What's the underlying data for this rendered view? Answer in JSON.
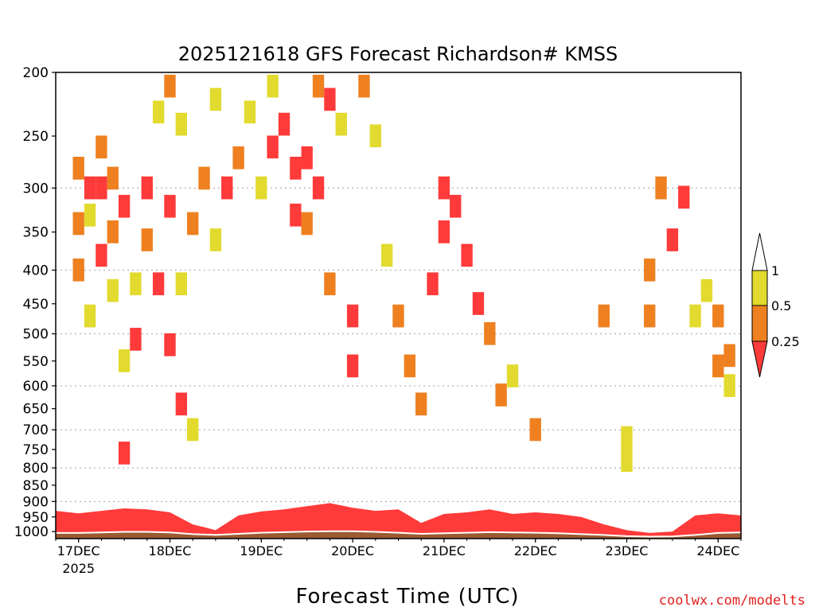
{
  "chart_data": {
    "type": "heatmap",
    "title": "2025121618 GFS Forecast Richardson# KMSS",
    "xlabel": "Forecast Time (UTC)",
    "ylabel": "",
    "x_ticks": [
      "17DEC",
      "18DEC",
      "19DEC",
      "20DEC",
      "21DEC",
      "22DEC",
      "23DEC",
      "24DEC"
    ],
    "x_tick_sublabel": "2025",
    "y_ticks": [
      200,
      250,
      300,
      350,
      400,
      450,
      500,
      550,
      600,
      650,
      700,
      750,
      800,
      850,
      900,
      950,
      1000
    ],
    "y_gridlines": [
      300,
      400,
      500,
      600,
      700,
      800,
      900
    ],
    "y_scale": "log",
    "y_range": [
      200,
      1025
    ],
    "x_range": [
      "2025-12-16 18Z",
      "2025-12-24 06Z"
    ],
    "colorbar": {
      "levels": [
        0.25,
        0.5,
        1
      ],
      "level_labels": [
        "0.25",
        "0.5",
        "1"
      ],
      "colors": [
        "#ff3a3a",
        "#ee8020",
        "#e2da2e",
        "#ffffff"
      ]
    },
    "surface_pressure": [
      [
        "2025-12-16 18Z",
        1005
      ],
      [
        "2025-12-17 00Z",
        1005
      ],
      [
        "2025-12-17 06Z",
        1003
      ],
      [
        "2025-12-17 12Z",
        1001
      ],
      [
        "2025-12-17 18Z",
        1001
      ],
      [
        "2025-12-18 00Z",
        1003
      ],
      [
        "2025-12-18 06Z",
        1009
      ],
      [
        "2025-12-18 12Z",
        1012
      ],
      [
        "2025-12-18 18Z",
        1008
      ],
      [
        "2025-12-19 00Z",
        1004
      ],
      [
        "2025-12-19 06Z",
        1002
      ],
      [
        "2025-12-19 12Z",
        1000
      ],
      [
        "2025-12-19 18Z",
        999
      ],
      [
        "2025-12-20 00Z",
        999
      ],
      [
        "2025-12-20 06Z",
        1001
      ],
      [
        "2025-12-20 12Z",
        1004
      ],
      [
        "2025-12-20 18Z",
        1008
      ],
      [
        "2025-12-21 00Z",
        1006
      ],
      [
        "2025-12-21 06Z",
        1004
      ],
      [
        "2025-12-21 12Z",
        1002
      ],
      [
        "2025-12-21 18Z",
        1003
      ],
      [
        "2025-12-22 00Z",
        1004
      ],
      [
        "2025-12-22 06Z",
        1006
      ],
      [
        "2025-12-22 12Z",
        1009
      ],
      [
        "2025-12-22 18Z",
        1012
      ],
      [
        "2025-12-23 00Z",
        1016
      ],
      [
        "2025-12-23 06Z",
        1018
      ],
      [
        "2025-12-23 12Z",
        1017
      ],
      [
        "2025-12-23 18Z",
        1012
      ],
      [
        "2025-12-24 00Z",
        1005
      ],
      [
        "2025-12-24 06Z",
        1003
      ]
    ],
    "boundary_layer_top_red": [
      [
        "2025-12-16 18Z",
        930
      ],
      [
        "2025-12-17 00Z",
        938
      ],
      [
        "2025-12-17 06Z",
        930
      ],
      [
        "2025-12-17 12Z",
        922
      ],
      [
        "2025-12-17 18Z",
        925
      ],
      [
        "2025-12-18 00Z",
        935
      ],
      [
        "2025-12-18 06Z",
        975
      ],
      [
        "2025-12-18 12Z",
        995
      ],
      [
        "2025-12-18 18Z",
        945
      ],
      [
        "2025-12-19 00Z",
        932
      ],
      [
        "2025-12-19 06Z",
        925
      ],
      [
        "2025-12-19 12Z",
        915
      ],
      [
        "2025-12-19 18Z",
        905
      ],
      [
        "2025-12-20 00Z",
        920
      ],
      [
        "2025-12-20 06Z",
        930
      ],
      [
        "2025-12-20 12Z",
        925
      ],
      [
        "2025-12-20 18Z",
        970
      ],
      [
        "2025-12-21 00Z",
        940
      ],
      [
        "2025-12-21 06Z",
        935
      ],
      [
        "2025-12-21 12Z",
        925
      ],
      [
        "2025-12-21 18Z",
        940
      ],
      [
        "2025-12-22 00Z",
        935
      ],
      [
        "2025-12-22 06Z",
        940
      ],
      [
        "2025-12-22 12Z",
        950
      ],
      [
        "2025-12-22 18Z",
        975
      ],
      [
        "2025-12-23 00Z",
        995
      ],
      [
        "2025-12-23 06Z",
        1005
      ],
      [
        "2025-12-23 12Z",
        1000
      ],
      [
        "2025-12-23 18Z",
        945
      ],
      [
        "2025-12-24 00Z",
        938
      ],
      [
        "2025-12-24 06Z",
        945
      ]
    ],
    "cells": [
      [
        "2025-12-17 00Z",
        280,
        "orange"
      ],
      [
        "2025-12-17 00Z",
        340,
        "orange"
      ],
      [
        "2025-12-17 00Z",
        400,
        "orange"
      ],
      [
        "2025-12-17 03Z",
        300,
        "red"
      ],
      [
        "2025-12-17 03Z",
        330,
        "yellow"
      ],
      [
        "2025-12-17 03Z",
        470,
        "yellow"
      ],
      [
        "2025-12-17 06Z",
        260,
        "orange"
      ],
      [
        "2025-12-17 06Z",
        300,
        "red"
      ],
      [
        "2025-12-17 06Z",
        380,
        "red"
      ],
      [
        "2025-12-17 09Z",
        290,
        "orange"
      ],
      [
        "2025-12-17 09Z",
        350,
        "orange"
      ],
      [
        "2025-12-17 09Z",
        430,
        "yellow"
      ],
      [
        "2025-12-17 12Z",
        320,
        "red"
      ],
      [
        "2025-12-17 12Z",
        550,
        "yellow"
      ],
      [
        "2025-12-17 12Z",
        760,
        "red"
      ],
      [
        "2025-12-17 15Z",
        420,
        "yellow"
      ],
      [
        "2025-12-17 15Z",
        510,
        "red"
      ],
      [
        "2025-12-17 18Z",
        300,
        "red"
      ],
      [
        "2025-12-17 18Z",
        360,
        "orange"
      ],
      [
        "2025-12-17 21Z",
        230,
        "yellow"
      ],
      [
        "2025-12-17 21Z",
        420,
        "red"
      ],
      [
        "2025-12-18 00Z",
        210,
        "orange"
      ],
      [
        "2025-12-18 00Z",
        320,
        "red"
      ],
      [
        "2025-12-18 00Z",
        520,
        "red"
      ],
      [
        "2025-12-18 03Z",
        240,
        "yellow"
      ],
      [
        "2025-12-18 03Z",
        420,
        "yellow"
      ],
      [
        "2025-12-18 03Z",
        640,
        "red"
      ],
      [
        "2025-12-18 06Z",
        340,
        "orange"
      ],
      [
        "2025-12-18 06Z",
        700,
        "yellow"
      ],
      [
        "2025-12-18 09Z",
        290,
        "orange"
      ],
      [
        "2025-12-18 12Z",
        220,
        "yellow"
      ],
      [
        "2025-12-18 12Z",
        360,
        "yellow"
      ],
      [
        "2025-12-18 15Z",
        300,
        "red"
      ],
      [
        "2025-12-18 18Z",
        270,
        "orange"
      ],
      [
        "2025-12-18 21Z",
        230,
        "yellow"
      ],
      [
        "2025-12-19 00Z",
        300,
        "yellow"
      ],
      [
        "2025-12-19 03Z",
        210,
        "yellow"
      ],
      [
        "2025-12-19 03Z",
        260,
        "red"
      ],
      [
        "2025-12-19 06Z",
        240,
        "red"
      ],
      [
        "2025-12-19 09Z",
        280,
        "red"
      ],
      [
        "2025-12-19 09Z",
        330,
        "red"
      ],
      [
        "2025-12-19 12Z",
        270,
        "red"
      ],
      [
        "2025-12-19 12Z",
        340,
        "orange"
      ],
      [
        "2025-12-19 15Z",
        210,
        "orange"
      ],
      [
        "2025-12-19 15Z",
        300,
        "red"
      ],
      [
        "2025-12-19 18Z",
        220,
        "red"
      ],
      [
        "2025-12-19 18Z",
        420,
        "orange"
      ],
      [
        "2025-12-19 21Z",
        240,
        "yellow"
      ],
      [
        "2025-12-20 00Z",
        470,
        "red"
      ],
      [
        "2025-12-20 00Z",
        560,
        "red"
      ],
      [
        "2025-12-20 03Z",
        210,
        "orange"
      ],
      [
        "2025-12-20 06Z",
        250,
        "yellow"
      ],
      [
        "2025-12-20 09Z",
        380,
        "yellow"
      ],
      [
        "2025-12-20 12Z",
        470,
        "orange"
      ],
      [
        "2025-12-20 15Z",
        560,
        "orange"
      ],
      [
        "2025-12-20 18Z",
        640,
        "orange"
      ],
      [
        "2025-12-20 21Z",
        420,
        "red"
      ],
      [
        "2025-12-21 00Z",
        300,
        "red"
      ],
      [
        "2025-12-21 00Z",
        350,
        "red"
      ],
      [
        "2025-12-21 03Z",
        320,
        "red"
      ],
      [
        "2025-12-21 06Z",
        380,
        "red"
      ],
      [
        "2025-12-21 09Z",
        450,
        "red"
      ],
      [
        "2025-12-21 12Z",
        500,
        "orange"
      ],
      [
        "2025-12-21 15Z",
        620,
        "orange"
      ],
      [
        "2025-12-21 18Z",
        580,
        "yellow"
      ],
      [
        "2025-12-22 00Z",
        700,
        "orange"
      ],
      [
        "2025-12-22 18Z",
        470,
        "orange"
      ],
      [
        "2025-12-23 00Z",
        720,
        "yellow"
      ],
      [
        "2025-12-23 00Z",
        780,
        "yellow"
      ],
      [
        "2025-12-23 06Z",
        400,
        "orange"
      ],
      [
        "2025-12-23 06Z",
        470,
        "orange"
      ],
      [
        "2025-12-23 09Z",
        300,
        "orange"
      ],
      [
        "2025-12-23 12Z",
        360,
        "red"
      ],
      [
        "2025-12-23 15Z",
        310,
        "red"
      ],
      [
        "2025-12-23 18Z",
        470,
        "yellow"
      ],
      [
        "2025-12-23 21Z",
        430,
        "yellow"
      ],
      [
        "2025-12-24 00Z",
        470,
        "orange"
      ],
      [
        "2025-12-24 00Z",
        560,
        "orange"
      ],
      [
        "2025-12-24 03Z",
        540,
        "orange"
      ],
      [
        "2025-12-24 03Z",
        600,
        "yellow"
      ]
    ],
    "credit": "coolwx.com/modelts"
  }
}
